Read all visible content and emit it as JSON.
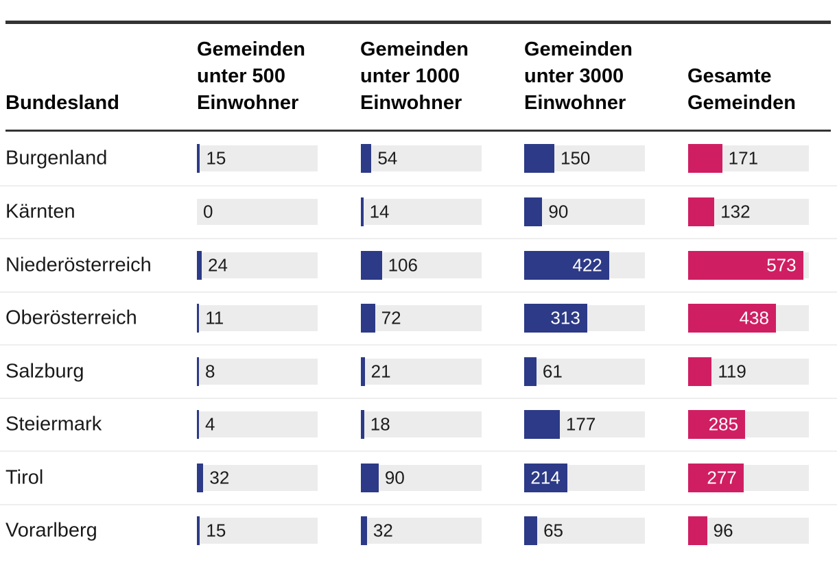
{
  "table": {
    "columns": [
      {
        "label": "Bundesland"
      },
      {
        "label": "Gemeinden unter 500 Einwohner",
        "bar_color": "#2c3a87"
      },
      {
        "label": "Gemeinden unter 1000 Einwohner",
        "bar_color": "#2c3a87"
      },
      {
        "label": "Gemeinden unter 3000 Einwohner",
        "bar_color": "#2c3a87"
      },
      {
        "label": "Gesamte Gemeinden",
        "bar_color": "#d01e63"
      }
    ],
    "rows": [
      {
        "bundesland": "Burgenland",
        "values": [
          15,
          54,
          150,
          171
        ]
      },
      {
        "bundesland": "Kärnten",
        "values": [
          0,
          14,
          90,
          132
        ]
      },
      {
        "bundesland": "Niederösterreich",
        "values": [
          24,
          106,
          422,
          573
        ]
      },
      {
        "bundesland": "Oberösterreich",
        "values": [
          11,
          72,
          313,
          438
        ]
      },
      {
        "bundesland": "Salzburg",
        "values": [
          8,
          21,
          61,
          119
        ]
      },
      {
        "bundesland": "Steiermark",
        "values": [
          4,
          18,
          177,
          285
        ]
      },
      {
        "bundesland": "Tirol",
        "values": [
          32,
          90,
          214,
          277
        ]
      },
      {
        "bundesland": "Vorarlberg",
        "values": [
          15,
          32,
          65,
          96
        ]
      }
    ]
  },
  "chart_data": {
    "type": "table",
    "subtype": "bar-table",
    "categories": [
      "Burgenland",
      "Kärnten",
      "Niederösterreich",
      "Oberösterreich",
      "Salzburg",
      "Steiermark",
      "Tirol",
      "Vorarlberg"
    ],
    "series": [
      {
        "name": "Gemeinden unter 500 Einwohner",
        "values": [
          15,
          0,
          24,
          11,
          8,
          4,
          32,
          15
        ],
        "color": "#2c3a87"
      },
      {
        "name": "Gemeinden unter 1000 Einwohner",
        "values": [
          54,
          14,
          106,
          72,
          21,
          18,
          90,
          32
        ],
        "color": "#2c3a87"
      },
      {
        "name": "Gemeinden unter 3000 Einwohner",
        "values": [
          150,
          90,
          422,
          313,
          61,
          177,
          214,
          65
        ],
        "color": "#d01e63_note_blue_actually",
        "bar_color": "#2c3a87"
      },
      {
        "name": "Gesamte Gemeinden",
        "values": [
          171,
          132,
          573,
          438,
          119,
          285,
          277,
          96
        ],
        "color": "#d01e63"
      }
    ],
    "title": "",
    "xlabel": "Bundesland",
    "ylabel": "",
    "value_range": [
      0,
      600
    ],
    "grid": false,
    "legend_position": "none",
    "track_color": "#ececec",
    "label_inside_color": "#ffffff",
    "label_outside_color": "#1c1c1c"
  }
}
